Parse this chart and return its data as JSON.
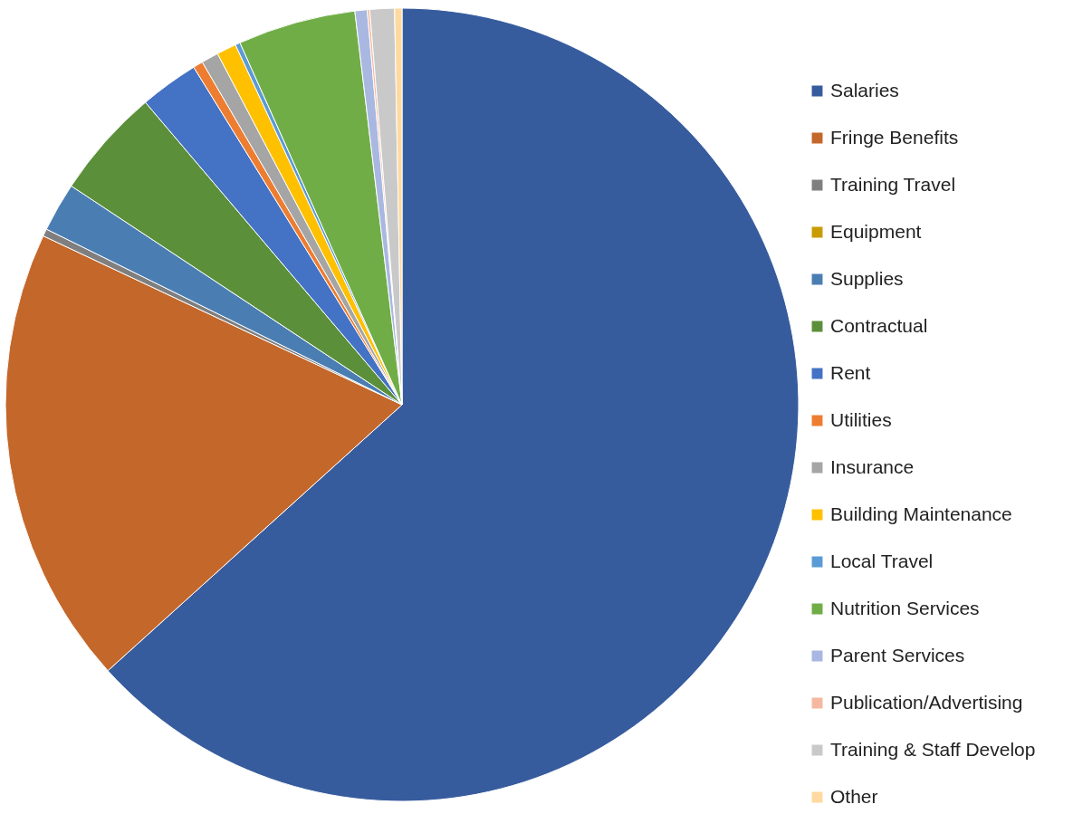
{
  "chart_data": {
    "type": "pie",
    "categories": [
      "Salaries",
      "Fringe Benefits",
      "Training Travel",
      "Equipment",
      "Supplies",
      "Contractual",
      "Rent",
      "Utilities",
      "Insurance",
      "Building Maintenance",
      "Local Travel",
      "Nutrition Services",
      "Parent Services",
      "Publication/Advertising",
      "Training & Staff Develop",
      "Other"
    ],
    "values": [
      63.3,
      18.7,
      0.3,
      0,
      2.0,
      4.5,
      2.4,
      0.4,
      0.7,
      0.8,
      0.2,
      4.8,
      0.5,
      0.1,
      1.0,
      0.3
    ],
    "colors": [
      "#375c9e",
      "#c4672a",
      "#7f7f7f",
      "#c89b00",
      "#4a7eb3",
      "#5b8f3a",
      "#4472c4",
      "#ed7d31",
      "#a5a5a5",
      "#ffc000",
      "#5b9bd5",
      "#70ad47",
      "#a9b8e0",
      "#f4b9a0",
      "#c9c9c9",
      "#ffd9a0"
    ],
    "legend": "right"
  }
}
